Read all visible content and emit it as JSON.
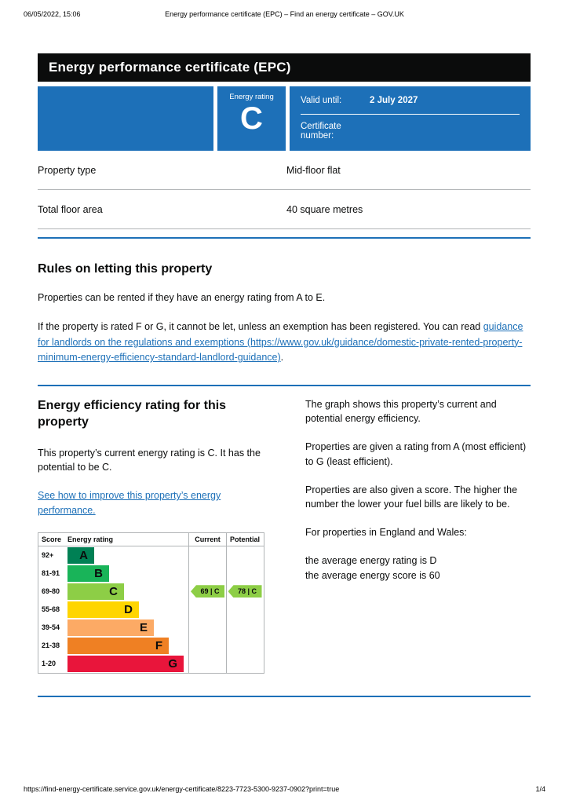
{
  "print_header": {
    "timestamp": "06/05/2022, 15:06",
    "title": "Energy performance certificate (EPC) – Find an energy certificate – GOV.UK"
  },
  "banner": {
    "title": "Energy performance certificate (EPC)"
  },
  "summary": {
    "address": "",
    "energy_rating_label": "Energy rating",
    "energy_rating": "C",
    "valid_until_label": "Valid until:",
    "valid_until_value": "2 July 2027",
    "certificate_number_label": "Certificate number:",
    "certificate_number_value": ""
  },
  "property": {
    "rows": [
      {
        "label": "Property type",
        "value": "Mid-floor flat"
      },
      {
        "label": "Total floor area",
        "value": "40 square metres"
      }
    ]
  },
  "rules": {
    "heading": "Rules on letting this property",
    "p1": "Properties can be rented if they have an energy rating from A to E.",
    "p2_before": "If the property is rated F or G, it cannot be let, unless an exemption has been registered. You can read ",
    "p2_link": "guidance for landlords on the regulations and exemptions (https://www.gov.uk/guidance/domestic-private-rented-property-minimum-energy-efficiency-standard-landlord-guidance)",
    "p2_after": "."
  },
  "efficiency": {
    "heading": "Energy efficiency rating for this property",
    "current_text": "This property’s current energy rating is C. It has the potential to be C.",
    "improve_link": "See how to improve this property’s energy performance.",
    "right_paragraphs": [
      "The graph shows this property’s current and potential energy efficiency.",
      "Properties are given a rating from A (most efficient) to G (least efficient).",
      "Properties are also given a score. The higher the number the lower your fuel bills are likely to be.",
      "For properties in England and Wales:",
      "the average energy rating is D\nthe average energy score is 60"
    ]
  },
  "chart_data": {
    "type": "bar",
    "title": "Energy efficiency rating chart",
    "headers": [
      "Score",
      "Energy rating",
      "Current",
      "Potential"
    ],
    "bands": [
      {
        "score": "92+",
        "letter": "A",
        "color": "#008054"
      },
      {
        "score": "81-91",
        "letter": "B",
        "color": "#19b459"
      },
      {
        "score": "69-80",
        "letter": "C",
        "color": "#8dce46"
      },
      {
        "score": "55-68",
        "letter": "D",
        "color": "#ffd500"
      },
      {
        "score": "39-54",
        "letter": "E",
        "color": "#fcaa65"
      },
      {
        "score": "21-38",
        "letter": "F",
        "color": "#ef8023"
      },
      {
        "score": "1-20",
        "letter": "G",
        "color": "#e9153b"
      }
    ],
    "current": {
      "score": 69,
      "letter": "C",
      "label": "69 | C",
      "band_index": 2,
      "color": "#8dce46"
    },
    "potential": {
      "score": 78,
      "letter": "C",
      "label": "78 | C",
      "band_index": 2,
      "color": "#8dce46"
    }
  },
  "footer": {
    "url": "https://find-energy-certificate.service.gov.uk/energy-certificate/8223-7723-5300-9237-0902?print=true",
    "page_number": "1/4"
  },
  "colors": {
    "govuk_blue": "#1d70b8",
    "banner_black": "#0b0c0c",
    "border_grey": "#b1b4b6"
  }
}
